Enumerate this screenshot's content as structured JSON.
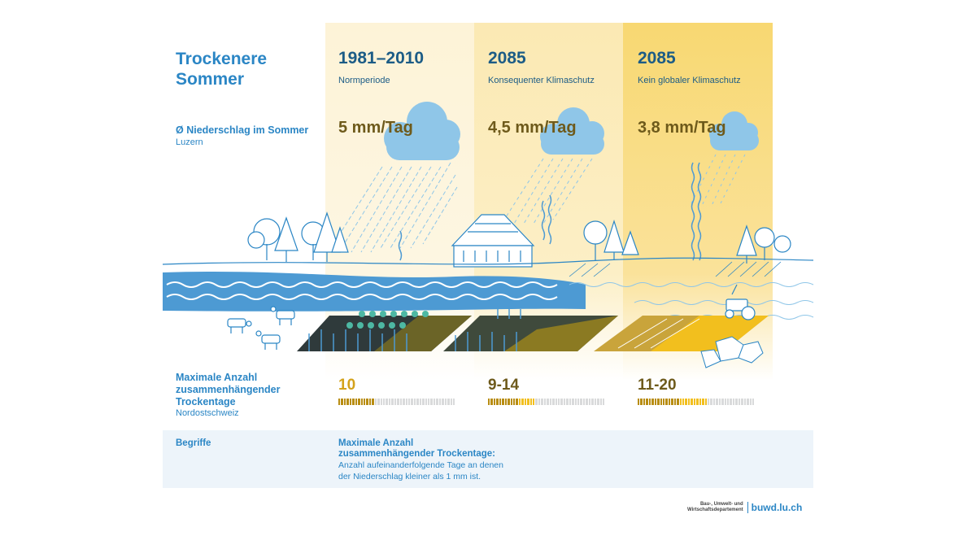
{
  "header": {
    "title": "Trockenere Sommer"
  },
  "columns": [
    {
      "period": "1981–2010",
      "scenario": "Normperiode",
      "precip": "5 mm/Tag",
      "dry_days": "10",
      "dry_days_fraction": 0.3,
      "accent_color": "#d4a21b"
    },
    {
      "period": "2085",
      "scenario": "Konsequenter Klimaschutz",
      "precip": "4,5 mm/Tag",
      "dry_days": "9-14",
      "dry_days_fraction": 0.4,
      "accent_color": "#d4a21b"
    },
    {
      "period": "2085",
      "scenario": "Kein globaler Klimaschutz",
      "precip": "3,8 mm/Tag",
      "dry_days": "11-20",
      "dry_days_fraction": 0.6,
      "accent_color": "#d4a21b"
    }
  ],
  "rows": {
    "precip": {
      "label": "Ø Niederschlag im Sommer",
      "location": "Luzern"
    },
    "dry_days": {
      "label_line1": "Maximale Anzahl",
      "label_line2": "zusammenhängender",
      "label_line3": "Trockentage",
      "location": "Nordostschweiz"
    }
  },
  "begriffe": {
    "label": "Begriffe",
    "term_line1": "Maximale Anzahl",
    "term_line2": "zusammenhängender Trockentage:",
    "def_line1": "Anzahl aufeinanderfolgende Tage an denen",
    "def_line2": "der Niederschlag kleiner als 1 mm ist."
  },
  "footer": {
    "dept_line1": "Bau-, Umwelt- und",
    "dept_line2": "Wirtschaftsdepartement",
    "link": "buwd.lu.ch"
  },
  "colors": {
    "accent_blue": "#2b86c5",
    "dark_blue": "#1c5c86",
    "gold": "#d4a21b",
    "water": "#4d9ad3",
    "cloud": "#8fc6e8"
  }
}
